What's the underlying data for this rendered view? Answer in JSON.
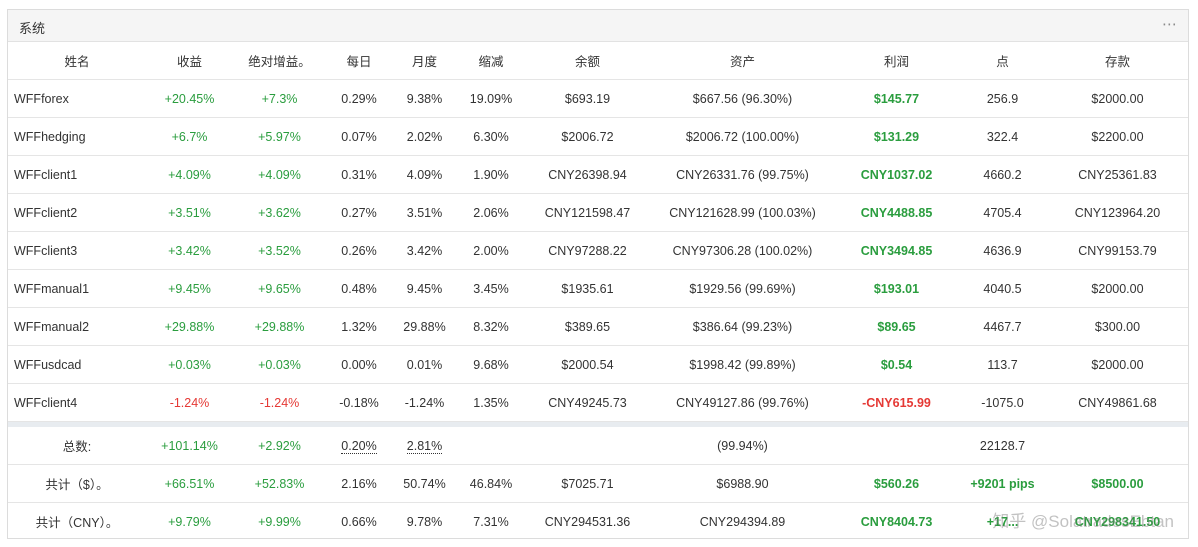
{
  "panel": {
    "title": "系统",
    "menu_icon": "⋯"
  },
  "columns": [
    "姓名",
    "收益",
    "绝对增益。",
    "每日",
    "月度",
    "缩减",
    "余额",
    "资产",
    "利润",
    "点",
    "存款"
  ],
  "rows": [
    {
      "name": "WFFforex",
      "gain": "+20.45%",
      "abs_gain": "+7.3%",
      "daily": "0.29%",
      "monthly": "9.38%",
      "drawdown": "19.09%",
      "balance": "$693.19",
      "equity": "$667.56 (96.30%)",
      "profit": "$145.77",
      "pips": "256.9",
      "deposits": "$2000.00"
    },
    {
      "name": "WFFhedging",
      "gain": "+6.7%",
      "abs_gain": "+5.97%",
      "daily": "0.07%",
      "monthly": "2.02%",
      "drawdown": "6.30%",
      "balance": "$2006.72",
      "equity": "$2006.72 (100.00%)",
      "profit": "$131.29",
      "pips": "322.4",
      "deposits": "$2200.00"
    },
    {
      "name": "WFFclient1",
      "gain": "+4.09%",
      "abs_gain": "+4.09%",
      "daily": "0.31%",
      "monthly": "4.09%",
      "drawdown": "1.90%",
      "balance": "CNY26398.94",
      "equity": "CNY26331.76 (99.75%)",
      "profit": "CNY1037.02",
      "pips": "4660.2",
      "deposits": "CNY25361.83"
    },
    {
      "name": "WFFclient2",
      "gain": "+3.51%",
      "abs_gain": "+3.62%",
      "daily": "0.27%",
      "monthly": "3.51%",
      "drawdown": "2.06%",
      "balance": "CNY121598.47",
      "equity": "CNY121628.99 (100.03%)",
      "profit": "CNY4488.85",
      "pips": "4705.4",
      "deposits": "CNY123964.20"
    },
    {
      "name": "WFFclient3",
      "gain": "+3.42%",
      "abs_gain": "+3.52%",
      "daily": "0.26%",
      "monthly": "3.42%",
      "drawdown": "2.00%",
      "balance": "CNY97288.22",
      "equity": "CNY97306.28 (100.02%)",
      "profit": "CNY3494.85",
      "pips": "4636.9",
      "deposits": "CNY99153.79"
    },
    {
      "name": "WFFmanual1",
      "gain": "+9.45%",
      "abs_gain": "+9.65%",
      "daily": "0.48%",
      "monthly": "9.45%",
      "drawdown": "3.45%",
      "balance": "$1935.61",
      "equity": "$1929.56 (99.69%)",
      "profit": "$193.01",
      "pips": "4040.5",
      "deposits": "$2000.00"
    },
    {
      "name": "WFFmanual2",
      "gain": "+29.88%",
      "abs_gain": "+29.88%",
      "daily": "1.32%",
      "monthly": "29.88%",
      "drawdown": "8.32%",
      "balance": "$389.65",
      "equity": "$386.64 (99.23%)",
      "profit": "$89.65",
      "pips": "4467.7",
      "deposits": "$300.00"
    },
    {
      "name": "WFFusdcad",
      "gain": "+0.03%",
      "abs_gain": "+0.03%",
      "daily": "0.00%",
      "monthly": "0.01%",
      "drawdown": "9.68%",
      "balance": "$2000.54",
      "equity": "$1998.42 (99.89%)",
      "profit": "$0.54",
      "pips": "113.7",
      "deposits": "$2000.00"
    },
    {
      "name": "WFFclient4",
      "gain": "-1.24%",
      "abs_gain": "-1.24%",
      "daily": "-0.18%",
      "monthly": "-1.24%",
      "drawdown": "1.35%",
      "balance": "CNY49245.73",
      "equity": "CNY49127.86 (99.76%)",
      "profit": "-CNY615.99",
      "pips": "-1075.0",
      "deposits": "CNY49861.68"
    }
  ],
  "totals": [
    {
      "label": "总数:",
      "gain": "+101.14%",
      "abs_gain": "+2.92%",
      "daily": "0.20%",
      "monthly": "2.81%",
      "drawdown": "",
      "balance": "",
      "equity": "(99.94%)",
      "profit": "",
      "pips": "22128.7",
      "deposits": ""
    },
    {
      "label": "共计（$）。",
      "gain": "+66.51%",
      "abs_gain": "+52.83%",
      "daily": "2.16%",
      "monthly": "50.74%",
      "drawdown": "46.84%",
      "balance": "$7025.71",
      "equity": "$6988.90",
      "profit": "$560.26",
      "pips": "+9201 pips",
      "deposits": "$8500.00"
    },
    {
      "label": "共计（CNY）。",
      "gain": "+9.79%",
      "abs_gain": "+9.99%",
      "daily": "0.66%",
      "monthly": "9.78%",
      "drawdown": "7.31%",
      "balance": "CNY294531.36",
      "equity": "CNY294394.89",
      "profit": "CNY8404.73",
      "pips": "+17...",
      "deposits": "CNY298341.50"
    }
  ],
  "watermark": "知乎 @SolatradesEbtan",
  "colors": {
    "positive": "#2a9d3e",
    "negative": "#e53935",
    "header_bg": "#f5f5f5",
    "separator": "#e8ecf0"
  }
}
